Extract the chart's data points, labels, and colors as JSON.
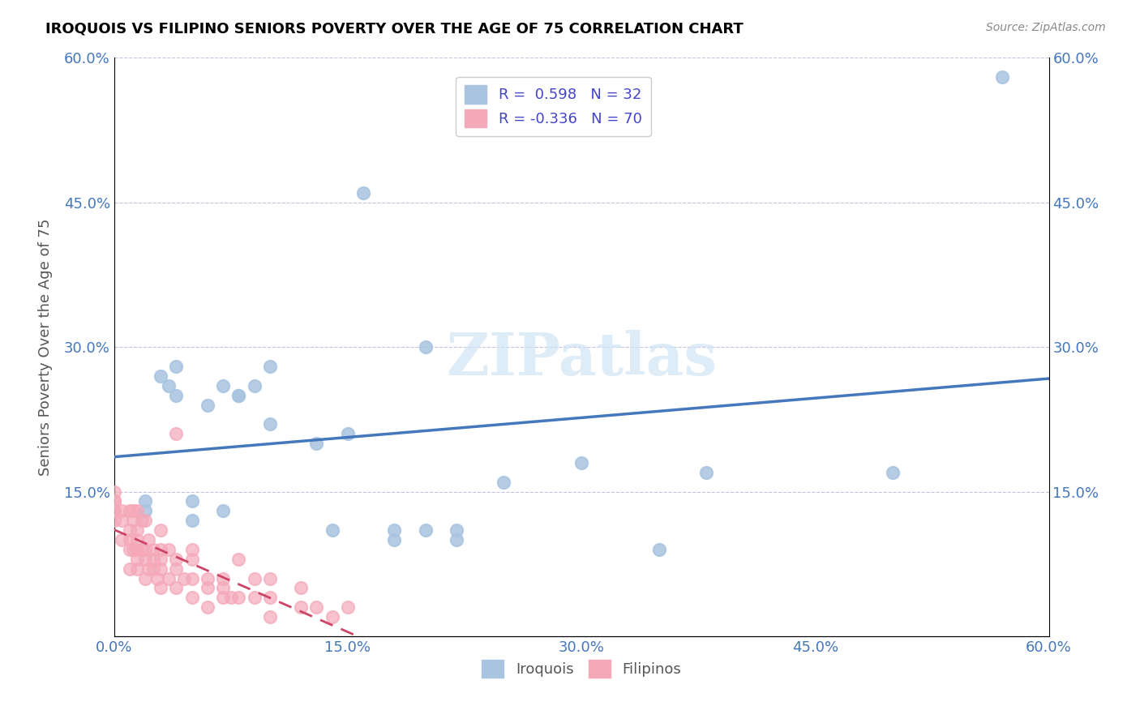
{
  "title": "IROQUOIS VS FILIPINO SENIORS POVERTY OVER THE AGE OF 75 CORRELATION CHART",
  "source": "Source: ZipAtlas.com",
  "ylabel": "Seniors Poverty Over the Age of 75",
  "watermark": "ZIPatlas",
  "xlim": [
    0.0,
    0.6
  ],
  "ylim": [
    0.0,
    0.6
  ],
  "xticks": [
    0.0,
    0.15,
    0.3,
    0.45,
    0.6
  ],
  "yticks": [
    0.0,
    0.15,
    0.3,
    0.45,
    0.6
  ],
  "xtick_labels": [
    "0.0%",
    "15.0%",
    "30.0%",
    "45.0%",
    "60.0%"
  ],
  "ytick_labels": [
    "",
    "15.0%",
    "30.0%",
    "45.0%",
    "60.0%"
  ],
  "iroquois_R": 0.598,
  "iroquois_N": 32,
  "filipino_R": -0.336,
  "filipino_N": 70,
  "iroquois_color": "#a8c4e0",
  "filipino_color": "#f4a8b8",
  "iroquois_line_color": "#4477bb",
  "filipino_line_color": "#cc4466",
  "iroquois_x": [
    0.02,
    0.02,
    0.03,
    0.035,
    0.04,
    0.04,
    0.05,
    0.05,
    0.06,
    0.07,
    0.07,
    0.08,
    0.08,
    0.09,
    0.1,
    0.1,
    0.13,
    0.14,
    0.15,
    0.16,
    0.18,
    0.18,
    0.2,
    0.2,
    0.22,
    0.22,
    0.25,
    0.3,
    0.35,
    0.38,
    0.5,
    0.57
  ],
  "iroquois_y": [
    0.13,
    0.14,
    0.27,
    0.26,
    0.25,
    0.28,
    0.12,
    0.14,
    0.24,
    0.26,
    0.13,
    0.25,
    0.25,
    0.26,
    0.22,
    0.28,
    0.2,
    0.11,
    0.21,
    0.46,
    0.1,
    0.11,
    0.11,
    0.3,
    0.1,
    0.11,
    0.16,
    0.18,
    0.09,
    0.17,
    0.17,
    0.58
  ],
  "filipino_x": [
    0.0,
    0.0,
    0.0,
    0.0,
    0.0,
    0.0,
    0.005,
    0.005,
    0.005,
    0.01,
    0.01,
    0.01,
    0.01,
    0.01,
    0.012,
    0.012,
    0.012,
    0.015,
    0.015,
    0.015,
    0.015,
    0.015,
    0.015,
    0.018,
    0.018,
    0.02,
    0.02,
    0.02,
    0.02,
    0.022,
    0.022,
    0.025,
    0.025,
    0.025,
    0.028,
    0.03,
    0.03,
    0.03,
    0.03,
    0.03,
    0.035,
    0.035,
    0.04,
    0.04,
    0.04,
    0.04,
    0.045,
    0.05,
    0.05,
    0.05,
    0.05,
    0.06,
    0.06,
    0.06,
    0.07,
    0.07,
    0.07,
    0.075,
    0.08,
    0.08,
    0.09,
    0.09,
    0.1,
    0.1,
    0.1,
    0.12,
    0.12,
    0.13,
    0.14,
    0.15
  ],
  "filipino_y": [
    0.12,
    0.13,
    0.13,
    0.14,
    0.14,
    0.15,
    0.1,
    0.12,
    0.13,
    0.07,
    0.09,
    0.1,
    0.11,
    0.13,
    0.09,
    0.12,
    0.13,
    0.07,
    0.08,
    0.09,
    0.1,
    0.11,
    0.13,
    0.09,
    0.12,
    0.06,
    0.08,
    0.09,
    0.12,
    0.07,
    0.1,
    0.07,
    0.08,
    0.09,
    0.06,
    0.05,
    0.07,
    0.08,
    0.09,
    0.11,
    0.06,
    0.09,
    0.05,
    0.07,
    0.08,
    0.21,
    0.06,
    0.04,
    0.06,
    0.08,
    0.09,
    0.03,
    0.05,
    0.06,
    0.04,
    0.05,
    0.06,
    0.04,
    0.04,
    0.08,
    0.04,
    0.06,
    0.02,
    0.04,
    0.06,
    0.03,
    0.05,
    0.03,
    0.02,
    0.03
  ]
}
